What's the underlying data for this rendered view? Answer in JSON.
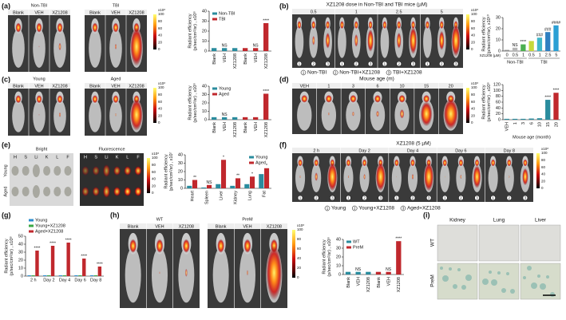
{
  "panel_labels": [
    "(a)",
    "(b)",
    "(c)",
    "(d)",
    "(e)",
    "(f)",
    "(g)",
    "(h)",
    "(i)"
  ],
  "colorbar": {
    "ticks": [
      "100",
      "80",
      "60",
      "40",
      "20",
      "0"
    ],
    "unit": "x10⁸"
  },
  "a": {
    "groups": [
      "Non-TBI",
      "TBI"
    ],
    "lanes": [
      "Blank",
      "VEH",
      "XZ1208"
    ]
  },
  "b": {
    "title": "XZ1208 dose in Non-TBI and TBI mice (µM)",
    "lanes": [
      "0.5",
      "1",
      "2.5",
      "5"
    ],
    "markers": [
      "1",
      "2",
      "3"
    ],
    "legend": [
      "Non-TBI",
      "Non-TBI+XZ1208",
      "TBI+XZ1208"
    ]
  },
  "c": {
    "groups": [
      "Young",
      "Aged"
    ],
    "lanes": [
      "Blank",
      "VEH",
      "XZ1208"
    ]
  },
  "d": {
    "title": "Mouse age (m)",
    "lanes": [
      "VEH",
      "1",
      "3",
      "6",
      "10",
      "15",
      "20"
    ]
  },
  "e": {
    "groups": [
      "Bright",
      "Fluorescence"
    ],
    "organs": [
      "H",
      "S",
      "Li",
      "K",
      "L",
      "F"
    ],
    "rows": [
      "Young",
      "Aged"
    ]
  },
  "f": {
    "title": "XZ1208 (5 µM)",
    "lanes": [
      "2 h",
      "Day 2",
      "Day 4",
      "Day 6",
      "Day 8"
    ],
    "markers": [
      "1",
      "2",
      "3"
    ],
    "legend": [
      "Young",
      "Young+XZ1208",
      "Aged+XZ1208"
    ]
  },
  "h": {
    "groups": [
      "WT",
      "PreM"
    ],
    "lanes": [
      "Blank",
      "VEH",
      "XZ1208"
    ]
  },
  "i": {
    "columns": [
      "Kidney",
      "Lung",
      "Liver"
    ],
    "rows": [
      "WT",
      "PreM"
    ]
  },
  "chart_data": [
    {
      "type": "bar",
      "ylabel": [
        "Radiant efficiency",
        "(p/sec/cm²/sr) , x10⁸"
      ],
      "categories": [
        "Blank",
        "VEH",
        "XZ1208",
        "Blank",
        "VEH",
        "XZ1208"
      ],
      "series": [
        {
          "name": "Non-TBI",
          "color": "#2a8c9e",
          "values": [
            3,
            3,
            3,
            null,
            null,
            null
          ],
          "significance": [
            null,
            "NS",
            null,
            null,
            null,
            null
          ]
        },
        {
          "name": "TBI",
          "color": "#c0282d",
          "values": [
            null,
            null,
            null,
            3,
            3,
            28
          ],
          "significance": [
            null,
            null,
            null,
            null,
            "NS",
            "****"
          ]
        }
      ],
      "ylim": [
        0,
        40
      ],
      "yticks": [
        0,
        10,
        20,
        30,
        40
      ],
      "legend": "upper left",
      "xtick_rotation": 90
    },
    {
      "type": "bar",
      "ylabel": [
        "Radiant efficiency",
        "(p/sec/cm²/sr), x10¹⁰"
      ],
      "xlabel": "XZ1208 (µM)",
      "categories": [
        "0",
        "0.5",
        "1",
        "0.5",
        "1",
        "2.5",
        "5"
      ],
      "bar_colors": [
        "#8c8c8c",
        "#b5b5b5",
        "#4caf50",
        "#c6d93a",
        "#3fb7c9",
        "#2f7fc1",
        "#2b9fd4"
      ],
      "series": [
        {
          "name": "Non-TBI",
          "color": "#8c8c8c",
          "values": [
            1,
            3,
            6,
            null,
            null,
            null,
            null
          ],
          "significance": [
            null,
            "NS",
            "****",
            null,
            null,
            null,
            null
          ]
        },
        {
          "name": "TBI",
          "color": "#2b9fd4",
          "values": [
            null,
            null,
            null,
            9,
            12,
            17,
            23
          ],
          "significance": [
            null,
            null,
            null,
            null,
            "###",
            "###",
            "####"
          ]
        }
      ],
      "ylim": [
        0,
        30
      ],
      "yticks": [
        0,
        10,
        20,
        30
      ],
      "group_labels": true,
      "xtick_rotation": 0
    },
    {
      "type": "bar",
      "ylabel": [
        "Radiant efficiency",
        "(p/sec/cm²/sr) , x10⁸"
      ],
      "categories": [
        "Blank",
        "VEH",
        "XZ1208",
        "Blank",
        "VEH",
        "XZ1208"
      ],
      "series": [
        {
          "name": "Young",
          "color": "#2a8c9e",
          "values": [
            3,
            3,
            3,
            null,
            null,
            null
          ],
          "significance": [
            null,
            "NS",
            null,
            null,
            null,
            null
          ]
        },
        {
          "name": "Aged",
          "color": "#c0282d",
          "values": [
            null,
            null,
            null,
            3,
            3,
            31
          ],
          "significance": [
            null,
            null,
            null,
            null,
            null,
            "****"
          ]
        }
      ],
      "ylim": [
        0,
        40
      ],
      "yticks": [
        0,
        10,
        20,
        30,
        40
      ],
      "legend": "upper left",
      "xtick_rotation": 90
    },
    {
      "type": "bar",
      "ylabel": [
        "Radiant efficiency",
        "(p/sec/cm²/sr) , x10⁸"
      ],
      "xlabel": "Mouse age (month)",
      "categories": [
        "VEH",
        "1",
        "3",
        "6",
        "10",
        "15",
        "20"
      ],
      "bar_colors": [
        "#2a8c9e",
        "#2a8c9e",
        "#2a8c9e",
        "#2a8c9e",
        "#2a8c9e",
        "#2a8c9e",
        "#c0282d"
      ],
      "series": [
        {
          "color": "#2a8c9e",
          "values": [
            3,
            3,
            3,
            4,
            5,
            68,
            92
          ],
          "significance": [
            null,
            null,
            null,
            null,
            null,
            "****",
            "****"
          ]
        }
      ],
      "ylim": [
        0,
        120
      ],
      "yticks": [
        0,
        20,
        40,
        60,
        80,
        100,
        120
      ],
      "xtick_rotation": 90
    },
    {
      "type": "bar",
      "ylabel": [
        "Radiant efficiency",
        "(p/sec/cm²/sr) , x10⁷"
      ],
      "categories": [
        "Heart",
        "Spleen",
        "Liver",
        "Kidney",
        "Lung",
        "Fat"
      ],
      "series": [
        {
          "name": "Young",
          "color": "#2a8c9e",
          "values": [
            3,
            1,
            5,
            3,
            5,
            17
          ]
        },
        {
          "name": "Aged",
          "color": "#c0282d",
          "values": [
            10,
            4,
            34,
            12,
            14,
            24
          ],
          "significance": [
            "**",
            "NS",
            "*",
            "**",
            "*",
            "*"
          ]
        }
      ],
      "ylim": [
        0,
        40
      ],
      "yticks": [
        0,
        10,
        20,
        30,
        40
      ],
      "legend": "upper right",
      "xtick_rotation": 90
    },
    {
      "type": "bar",
      "ylabel": [
        "Radiant efficiency",
        "(p/sec/cm²/sr) , x10⁸"
      ],
      "categories": [
        "2 h",
        "Day 2",
        "Day 4",
        "Day 6",
        "Day 8"
      ],
      "series": [
        {
          "name": "Young",
          "color": "#2a8ccf",
          "values": [
            1,
            1,
            1,
            1,
            1
          ]
        },
        {
          "name": "Young+XZ1208",
          "color": "#3aa845",
          "values": [
            1,
            1,
            1,
            1,
            1
          ]
        },
        {
          "name": "Aged+XZ1208",
          "color": "#c0282d",
          "values": [
            32,
            38,
            42,
            22,
            12
          ],
          "significance": [
            "****",
            "****",
            "****",
            "****",
            "****"
          ]
        }
      ],
      "ylim": [
        0,
        50
      ],
      "yticks": [
        0,
        10,
        20,
        30,
        40,
        50
      ],
      "legend": "top",
      "xtick_rotation": 0
    },
    {
      "type": "bar",
      "ylabel": [
        "Radiant efficiency",
        "(p/sec/cm²/sr) , x10⁸"
      ],
      "categories": [
        "Blank",
        "VEH",
        "XZ1208",
        "Blank",
        "VEH",
        "XZ1208"
      ],
      "series": [
        {
          "name": "WT",
          "color": "#2a8c9e",
          "values": [
            3,
            3,
            3,
            null,
            null,
            null
          ],
          "significance": [
            null,
            "NS",
            null,
            null,
            null,
            null
          ]
        },
        {
          "name": "PreM",
          "color": "#c0282d",
          "values": [
            null,
            null,
            null,
            3,
            3,
            38
          ],
          "significance": [
            null,
            null,
            null,
            null,
            "NS",
            "****"
          ]
        }
      ],
      "ylim": [
        0,
        40
      ],
      "yticks": [
        0,
        10,
        20,
        30,
        40
      ],
      "legend": "upper left",
      "xtick_rotation": 90
    }
  ]
}
